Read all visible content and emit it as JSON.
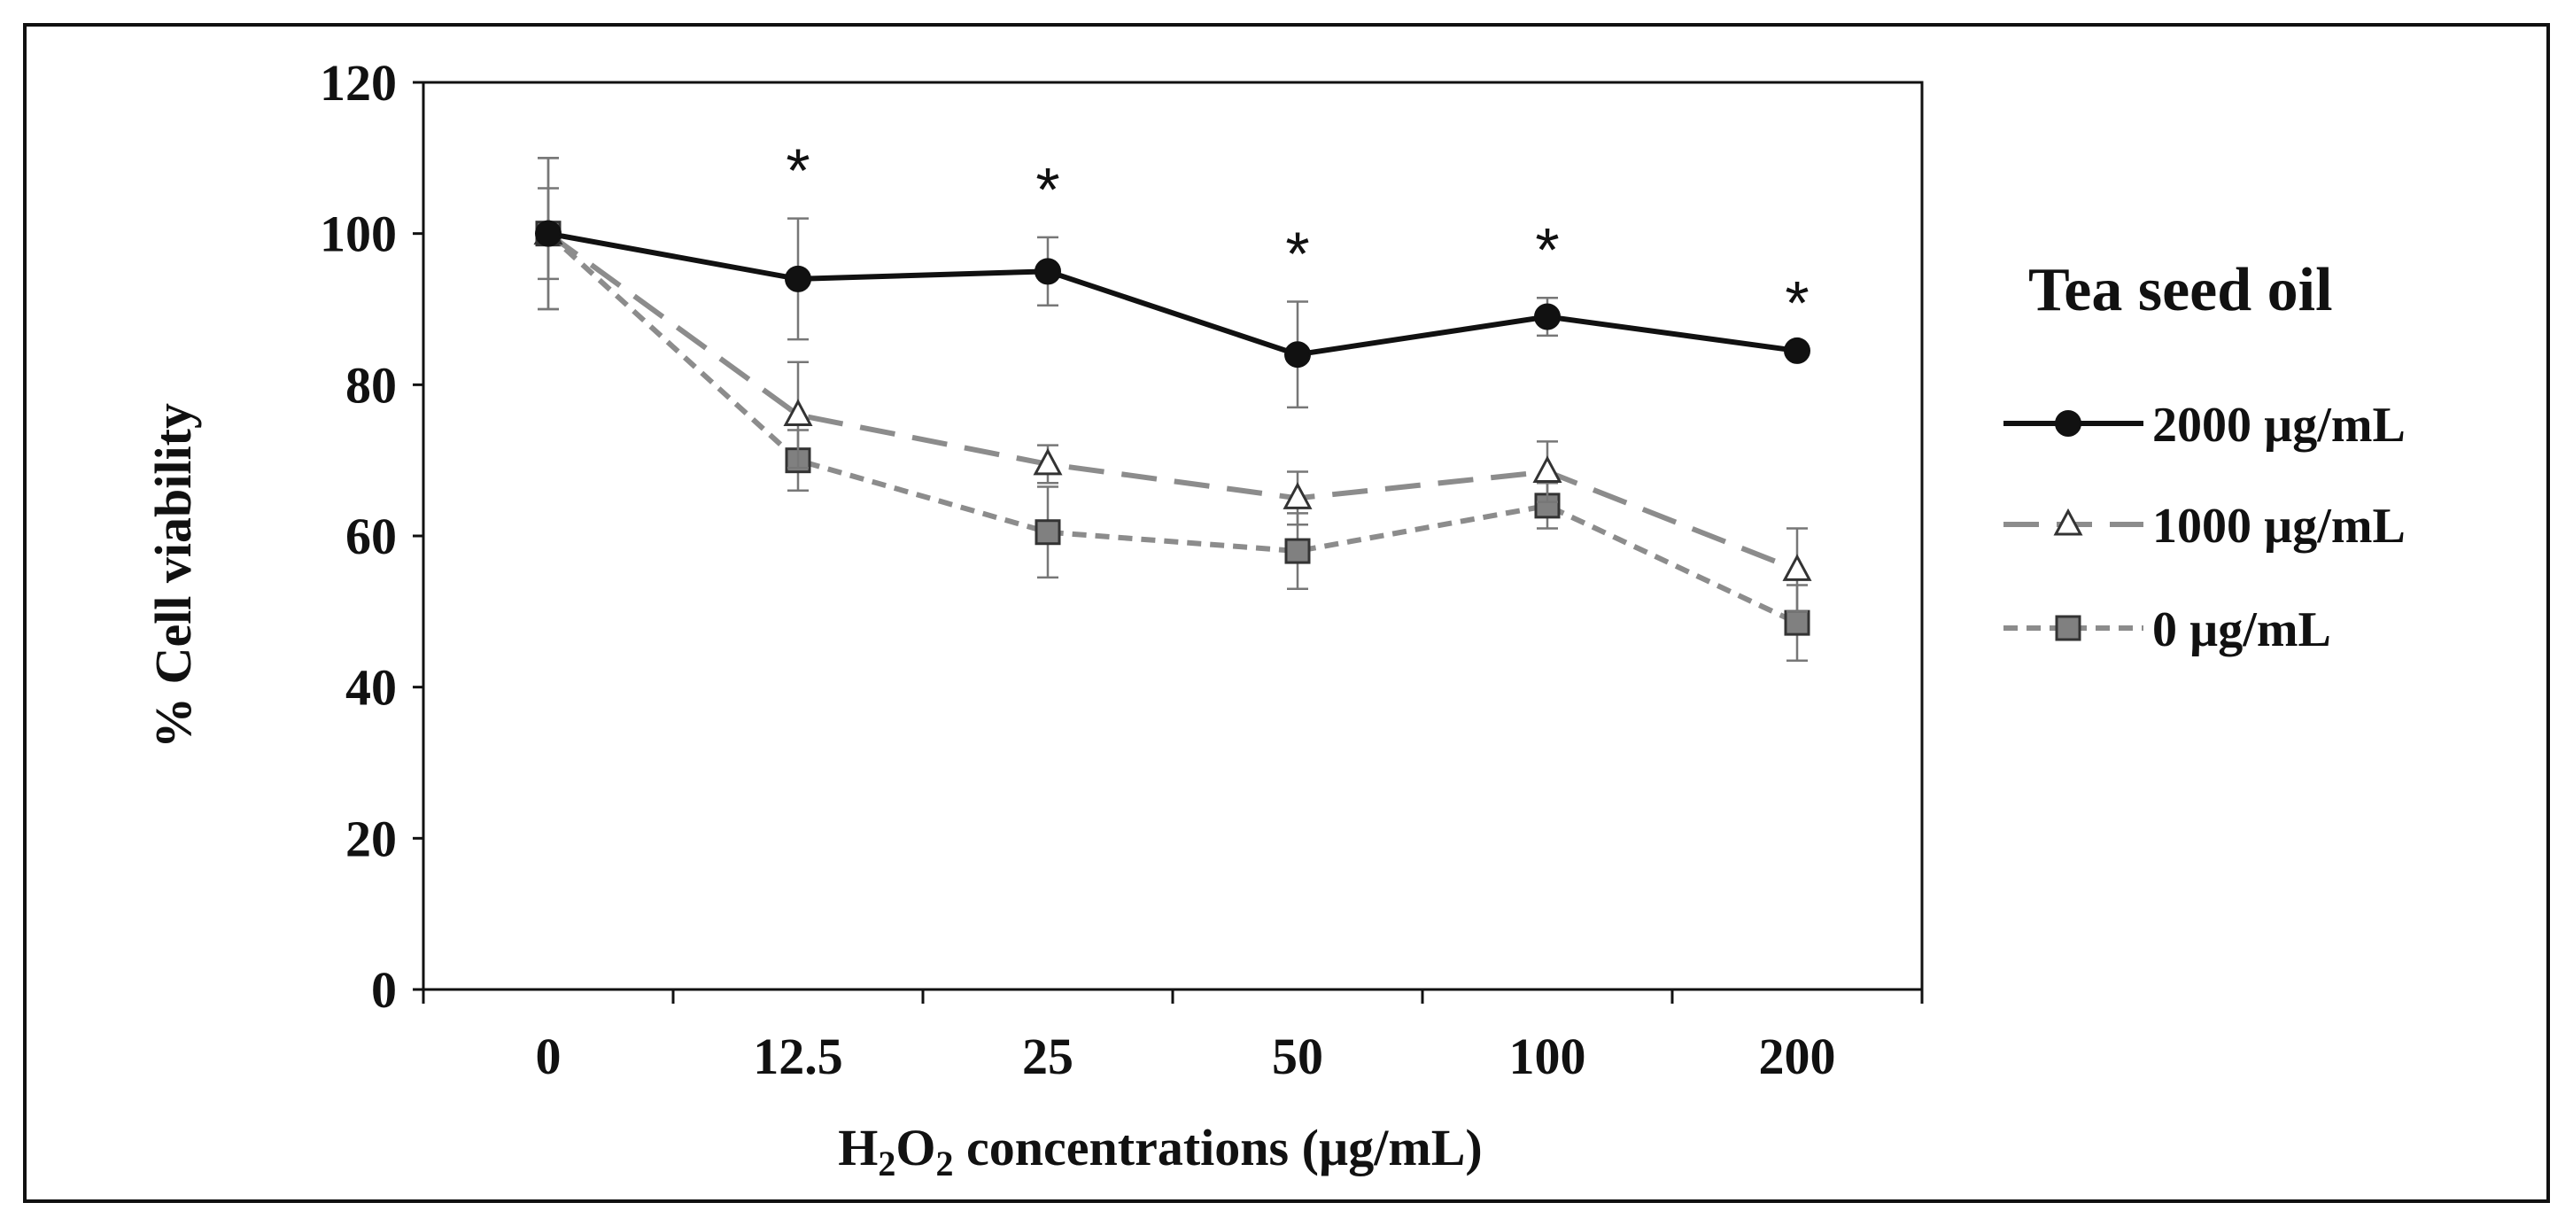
{
  "chart_data": {
    "type": "line",
    "title": "",
    "xlabel_prefix": "H",
    "xlabel_sub1": "2",
    "xlabel_mid": "O",
    "xlabel_sub2": "2",
    "xlabel_suffix": " concentrations (µg/mL)",
    "ylabel": "% Cell viability",
    "categories": [
      "0",
      "12.5",
      "25",
      "50",
      "100",
      "200"
    ],
    "ylim": [
      0,
      120
    ],
    "yticks": [
      0,
      20,
      40,
      60,
      80,
      100,
      120
    ],
    "legend_title": "Tea seed oil",
    "series": [
      {
        "name": "2000 µg/mL",
        "marker": "circle",
        "line": "solid",
        "color": "#111111",
        "marker_fill": "#111111",
        "values": [
          100,
          94,
          95,
          84,
          89,
          84.5
        ],
        "errors": [
          10,
          8,
          4.5,
          7,
          2.5,
          0
        ]
      },
      {
        "name": "1000 µg/mL",
        "marker": "triangle",
        "line": "longdash",
        "color": "#8c8c8c",
        "marker_fill": "#ffffff",
        "values": [
          100,
          76,
          69.5,
          65,
          68.5,
          55.5
        ],
        "errors": [
          6,
          7,
          2.5,
          3.5,
          4,
          5.5
        ]
      },
      {
        "name": "0 µg/mL",
        "marker": "square",
        "line": "shortdash",
        "color": "#8c8c8c",
        "marker_fill": "#808080",
        "values": [
          100,
          70,
          60.5,
          58,
          64,
          48.5
        ],
        "errors": [
          10,
          4,
          6,
          5,
          3,
          5
        ]
      }
    ],
    "significance": [
      "",
      "*",
      "*",
      "*",
      "*",
      "*"
    ],
    "grid": false,
    "legend_position": "right"
  }
}
